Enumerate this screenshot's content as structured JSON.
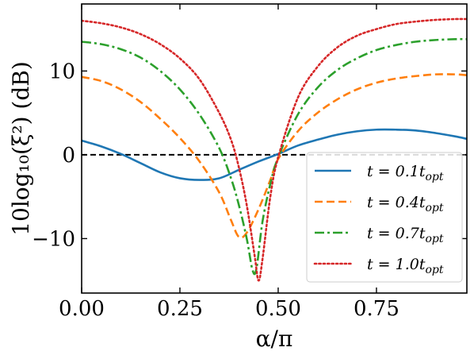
{
  "chart_data": {
    "type": "line",
    "xlabel": "α/π",
    "ylabel": "10log₁₀(ξ²) (dB)",
    "xlim": [
      0,
      0.98
    ],
    "ylim": [
      -16.5,
      18
    ],
    "xticks": [
      0,
      0.25,
      0.5,
      0.75
    ],
    "xtick_labels": [
      "0.00",
      "0.25",
      "0.50",
      "0.75"
    ],
    "yticks": [
      -10,
      0,
      10
    ],
    "ytick_labels": [
      "−10",
      "0",
      "10"
    ],
    "reference_line": {
      "y": 0,
      "style": "dashed",
      "color": "#000000"
    },
    "legend_position": "lower-right",
    "series": [
      {
        "name": "t = 0.1t_opt",
        "label_main": "t = 0.1t",
        "label_sub": "opt",
        "color": "#1f77b4",
        "style": "solid",
        "x": [
          0,
          0.05,
          0.1,
          0.15,
          0.2,
          0.25,
          0.3,
          0.35,
          0.4,
          0.45,
          0.5,
          0.55,
          0.6,
          0.65,
          0.7,
          0.75,
          0.8,
          0.85,
          0.9,
          0.95,
          0.98
        ],
        "y": [
          1.7,
          1.0,
          0.1,
          -1.0,
          -2.1,
          -2.8,
          -3.0,
          -2.8,
          -1.8,
          -0.8,
          0.1,
          1.1,
          1.8,
          2.4,
          2.8,
          3.0,
          3.0,
          2.9,
          2.6,
          2.2,
          1.9
        ]
      },
      {
        "name": "t = 0.4t_opt",
        "label_main": "t = 0.4t",
        "label_sub": "opt",
        "color": "#ff7f0e",
        "style": "dashed",
        "x": [
          0,
          0.05,
          0.1,
          0.15,
          0.2,
          0.25,
          0.3,
          0.35,
          0.38,
          0.4,
          0.42,
          0.45,
          0.48,
          0.5,
          0.55,
          0.6,
          0.65,
          0.7,
          0.75,
          0.8,
          0.85,
          0.9,
          0.95,
          0.98
        ],
        "y": [
          9.3,
          8.8,
          7.8,
          6.3,
          4.3,
          2.0,
          -0.8,
          -4.5,
          -7.8,
          -9.8,
          -9.3,
          -6.5,
          -3.0,
          -0.5,
          2.8,
          5.0,
          6.6,
          7.8,
          8.6,
          9.1,
          9.4,
          9.6,
          9.6,
          9.5
        ]
      },
      {
        "name": "t = 0.7t_opt",
        "label_main": "t = 0.7t",
        "label_sub": "opt",
        "color": "#2ca02c",
        "style": "dashdot",
        "x": [
          0,
          0.05,
          0.1,
          0.15,
          0.2,
          0.25,
          0.3,
          0.35,
          0.38,
          0.4,
          0.42,
          0.435,
          0.445,
          0.46,
          0.48,
          0.5,
          0.55,
          0.6,
          0.65,
          0.7,
          0.75,
          0.8,
          0.85,
          0.9,
          0.95,
          0.98
        ],
        "y": [
          13.5,
          13.2,
          12.6,
          11.6,
          10.0,
          7.8,
          4.8,
          0.8,
          -2.8,
          -6.0,
          -10.0,
          -13.8,
          -13.5,
          -8.0,
          -3.5,
          -0.3,
          4.8,
          8.0,
          10.1,
          11.5,
          12.5,
          13.1,
          13.5,
          13.7,
          13.8,
          13.8
        ]
      },
      {
        "name": "t = 1.0t_opt",
        "label_main": "t = 1.0t",
        "label_sub": "opt",
        "color": "#d62728",
        "style": "dotted",
        "x": [
          0,
          0.05,
          0.1,
          0.15,
          0.2,
          0.25,
          0.3,
          0.35,
          0.38,
          0.4,
          0.42,
          0.44,
          0.45,
          0.46,
          0.48,
          0.5,
          0.55,
          0.6,
          0.65,
          0.7,
          0.75,
          0.8,
          0.85,
          0.9,
          0.95,
          0.98
        ],
        "y": [
          16.0,
          15.7,
          15.2,
          14.4,
          13.2,
          11.5,
          9.0,
          5.0,
          1.8,
          -1.5,
          -6.0,
          -12.0,
          -15.0,
          -12.5,
          -5.0,
          -0.3,
          6.8,
          10.5,
          12.8,
          14.2,
          15.0,
          15.6,
          15.9,
          16.1,
          16.2,
          16.2
        ]
      }
    ]
  }
}
